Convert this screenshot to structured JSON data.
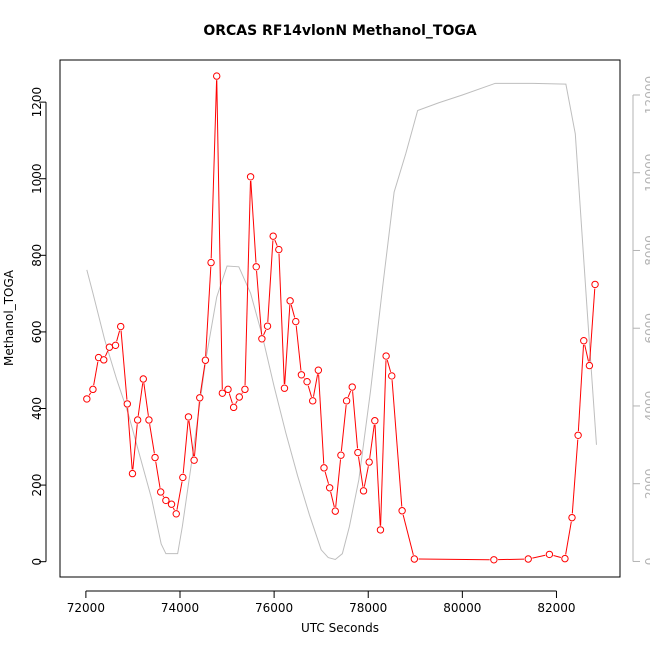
{
  "chart_data": {
    "type": "line",
    "title": "ORCAS RF14vlonN Methanol_TOGA",
    "xlabel": "UTC Seconds",
    "ylabel": "Methanol_TOGA",
    "xlim": [
      71450,
      83350
    ],
    "ylim": [
      -40,
      1310
    ],
    "y2lim": [
      -400,
      12900
    ],
    "x_ticks": [
      "72000",
      "74000",
      "76000",
      "78000",
      "80000",
      "82000"
    ],
    "y_ticks": [
      "0",
      "200",
      "400",
      "600",
      "800",
      "1000",
      "1200"
    ],
    "y2_ticks": [
      "0",
      "2000",
      "4000",
      "6000",
      "8000",
      "10000",
      "12000"
    ],
    "grid": false,
    "colors": {
      "methanol": "#ff0000",
      "secondary": "#bebebe",
      "axis": "#000000",
      "right_axis": "#b3b3b3"
    },
    "series": [
      {
        "axis": "left",
        "marker": "open-circle",
        "points": [
          [
            72020,
            425
          ],
          [
            72150,
            450
          ],
          [
            72270,
            533
          ],
          [
            72380,
            527
          ],
          [
            72500,
            560
          ],
          [
            72630,
            565
          ],
          [
            72740,
            614
          ],
          [
            72880,
            412
          ],
          [
            72990,
            230
          ],
          [
            73100,
            370
          ],
          [
            73220,
            477
          ],
          [
            73340,
            370
          ],
          [
            73470,
            272
          ],
          [
            73590,
            182
          ],
          [
            73700,
            160
          ],
          [
            73820,
            150
          ],
          [
            73920,
            125
          ],
          [
            74060,
            220
          ],
          [
            74180,
            378
          ],
          [
            74300,
            265
          ],
          [
            74420,
            428
          ],
          [
            74540,
            526
          ],
          [
            74660,
            781
          ],
          [
            74780,
            1268
          ],
          [
            74900,
            440
          ],
          [
            75020,
            450
          ],
          [
            75140,
            403
          ],
          [
            75260,
            430
          ],
          [
            75380,
            450
          ],
          [
            75500,
            1005
          ],
          [
            75620,
            770
          ],
          [
            75740,
            582
          ],
          [
            75860,
            615
          ],
          [
            75980,
            850
          ],
          [
            76100,
            815
          ],
          [
            76220,
            453
          ],
          [
            76340,
            681
          ],
          [
            76460,
            627
          ],
          [
            76580,
            488
          ],
          [
            76700,
            470
          ],
          [
            76820,
            420
          ],
          [
            76940,
            500
          ],
          [
            77060,
            245
          ],
          [
            77180,
            193
          ],
          [
            77300,
            132
          ],
          [
            77420,
            278
          ],
          [
            77540,
            420
          ],
          [
            77660,
            456
          ],
          [
            77780,
            285
          ],
          [
            77900,
            185
          ],
          [
            78020,
            260
          ],
          [
            78140,
            368
          ],
          [
            78260,
            83
          ],
          [
            78380,
            537
          ],
          [
            78500,
            485
          ],
          [
            78720,
            133
          ],
          [
            78980,
            7
          ],
          [
            80670,
            5
          ],
          [
            81400,
            7
          ],
          [
            81850,
            19
          ],
          [
            82180,
            8
          ],
          [
            82330,
            115
          ],
          [
            82460,
            330
          ],
          [
            82580,
            577
          ],
          [
            82700,
            512
          ],
          [
            82820,
            724
          ]
        ]
      },
      {
        "axis": "right",
        "marker": "none",
        "points": [
          [
            72020,
            7500
          ],
          [
            72150,
            6900
          ],
          [
            72400,
            5700
          ],
          [
            72650,
            4700
          ],
          [
            72900,
            3800
          ],
          [
            73150,
            2700
          ],
          [
            73400,
            1600
          ],
          [
            73600,
            450
          ],
          [
            73700,
            200
          ],
          [
            73950,
            200
          ],
          [
            74050,
            900
          ],
          [
            74300,
            3000
          ],
          [
            74550,
            5200
          ],
          [
            74780,
            6800
          ],
          [
            75000,
            7600
          ],
          [
            75250,
            7580
          ],
          [
            75500,
            6900
          ],
          [
            75750,
            5800
          ],
          [
            76000,
            4500
          ],
          [
            76250,
            3300
          ],
          [
            76500,
            2200
          ],
          [
            76750,
            1200
          ],
          [
            77000,
            300
          ],
          [
            77150,
            100
          ],
          [
            77300,
            50
          ],
          [
            77450,
            200
          ],
          [
            77600,
            900
          ],
          [
            77800,
            2100
          ],
          [
            78050,
            4400
          ],
          [
            78300,
            7000
          ],
          [
            78550,
            9500
          ],
          [
            78800,
            10500
          ],
          [
            79050,
            11600
          ],
          [
            79500,
            11800
          ],
          [
            80000,
            12000
          ],
          [
            80700,
            12300
          ],
          [
            81500,
            12300
          ],
          [
            82200,
            12280
          ],
          [
            82400,
            11000
          ],
          [
            82650,
            6500
          ],
          [
            82850,
            3000
          ]
        ]
      }
    ]
  }
}
